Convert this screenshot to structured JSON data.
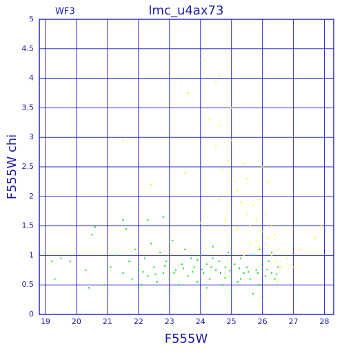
{
  "chart_data": {
    "type": "scatter",
    "title": "lmc_u4ax73",
    "corner_label": "WF3",
    "x_label": "F555W",
    "y_label": "F555W chi",
    "xlim": [
      18.8,
      28.3
    ],
    "ylim": [
      0,
      5
    ],
    "xticks": [
      19,
      20,
      21,
      22,
      23,
      24,
      25,
      26,
      27,
      28
    ],
    "yticks": [
      0,
      0.5,
      1,
      1.5,
      2,
      2.5,
      3,
      3.5,
      4,
      4.5,
      5
    ],
    "grid": true,
    "series": [
      {
        "color": "#00e000",
        "x": [
          19.2,
          19.3,
          19.5,
          19.8,
          20.3,
          20.4,
          20.5,
          20.6,
          20.9,
          21.0,
          21.1,
          21.3,
          21.5,
          21.6,
          21.7,
          21.8,
          21.9,
          22.0,
          22.1,
          22.2,
          22.3,
          22.4,
          22.5,
          22.6,
          22.7,
          22.8,
          22.9,
          23.0,
          23.1,
          23.2,
          23.3,
          23.4,
          23.5,
          23.6,
          23.7,
          23.8,
          23.9,
          24.0,
          24.1,
          24.2,
          24.3,
          24.4,
          24.5,
          24.6,
          24.7,
          24.8,
          24.9,
          25.0,
          25.1,
          25.2,
          25.3,
          25.4,
          25.5,
          25.6,
          25.7,
          25.8,
          25.9,
          26.0,
          26.1,
          26.2,
          26.3,
          26.4,
          26.5,
          22.15,
          22.55,
          22.85,
          23.15,
          23.45,
          23.75,
          24.05,
          24.35,
          24.65,
          24.95,
          25.25,
          25.55,
          25.85,
          26.15,
          26.45,
          24.2,
          25.0,
          25.7,
          26.0,
          23.0,
          22.0,
          21.5,
          22.3,
          22.8,
          24.4,
          25.3,
          25.9,
          26.3,
          23.9,
          24.8
        ],
        "y": [
          0.9,
          0.6,
          0.95,
          0.9,
          0.75,
          0.45,
          1.35,
          1.48,
          0.5,
          0.35,
          0.8,
          1.0,
          0.7,
          1.45,
          0.9,
          0.6,
          1.1,
          0.75,
          0.5,
          0.95,
          0.65,
          1.2,
          0.8,
          0.55,
          1.05,
          0.7,
          0.9,
          0.6,
          1.25,
          0.75,
          0.5,
          0.85,
          1.1,
          0.65,
          0.95,
          0.8,
          0.55,
          1.0,
          0.7,
          0.85,
          0.6,
          1.15,
          0.75,
          0.9,
          0.5,
          0.8,
          1.05,
          0.65,
          0.85,
          0.55,
          0.95,
          0.7,
          0.8,
          0.6,
          1.0,
          0.75,
          0.5,
          0.85,
          0.65,
          0.9,
          0.7,
          0.6,
          0.8,
          0.72,
          0.68,
          0.82,
          0.7,
          0.78,
          0.72,
          0.76,
          0.8,
          0.7,
          0.74,
          0.78,
          0.72,
          0.7,
          0.76,
          0.68,
          0.45,
          0.4,
          0.35,
          0.3,
          0.4,
          0.45,
          1.6,
          1.6,
          1.65,
          0.95,
          0.6,
          1.1,
          1.05,
          0.92,
          0.62
        ]
      },
      {
        "color": "#ffff00",
        "x": [
          21.5,
          22.4,
          23.5,
          23.6,
          24.1,
          24.5,
          24.6,
          24.3,
          24.6,
          24.5,
          24.7,
          24.9,
          25.0,
          25.0,
          25.1,
          25.2,
          25.3,
          25.4,
          25.5,
          25.5,
          25.6,
          25.7,
          25.8,
          25.9,
          26.0,
          26.1,
          26.2,
          26.3,
          26.4,
          26.5,
          26.2,
          26.0,
          26.6,
          26.3,
          25.9,
          24.8,
          24.0,
          24.6,
          25.2,
          25.6,
          26.5,
          26.8,
          27.2,
          27.7,
          27.9,
          27.0,
          25.4,
          26.1,
          25.8,
          26.4
        ],
        "y": [
          2.95,
          2.2,
          2.4,
          3.75,
          4.3,
          3.95,
          4.05,
          3.3,
          3.2,
          2.85,
          2.45,
          2.6,
          2.95,
          3.5,
          2.25,
          2.1,
          1.9,
          2.55,
          2.3,
          1.7,
          1.5,
          1.85,
          1.6,
          1.95,
          1.4,
          1.2,
          1.3,
          1.0,
          0.9,
          1.1,
          2.25,
          2.5,
          0.8,
          1.5,
          1.15,
          1.6,
          1.55,
          1.95,
          1.45,
          1.2,
          0.55,
          0.95,
          1.1,
          1.3,
          1.5,
          0.8,
          1.0,
          1.7,
          1.25,
          1.35
        ]
      }
    ]
  }
}
